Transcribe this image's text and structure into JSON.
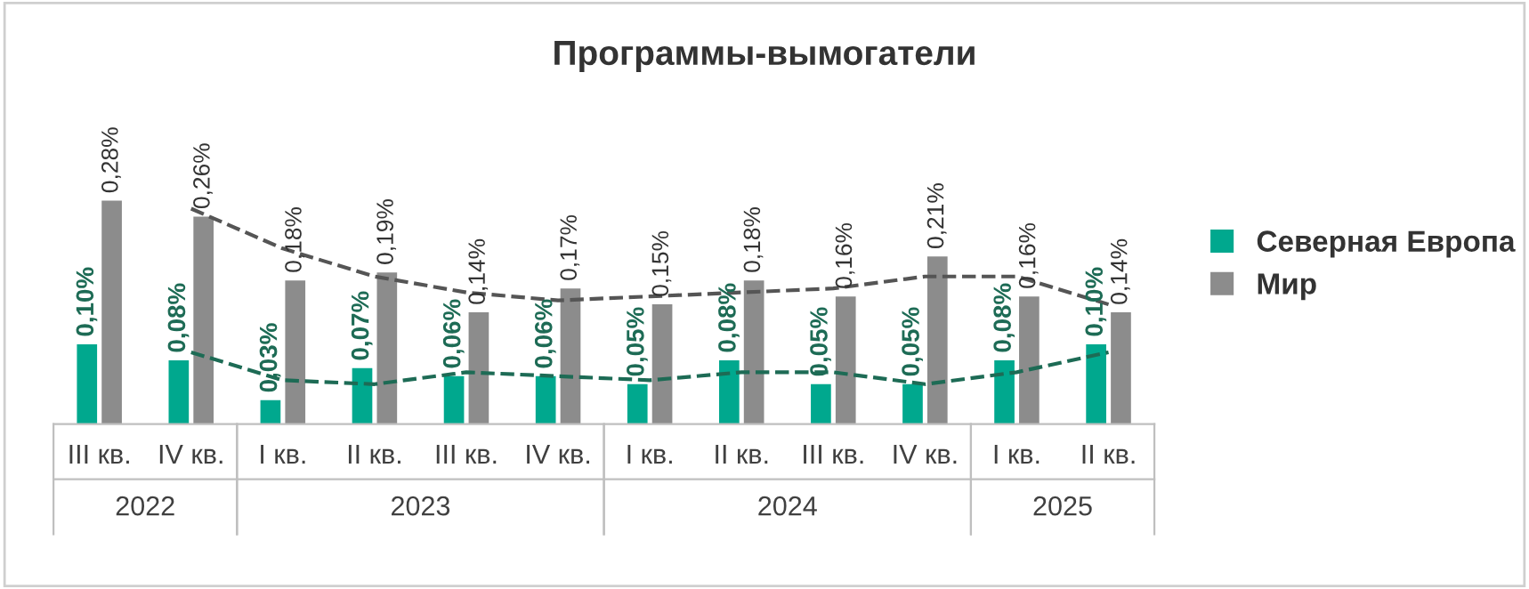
{
  "chart_data": {
    "type": "bar",
    "title": "Программы-вымогатели",
    "categories": [
      "III кв.",
      "IV кв.",
      "I кв.",
      "II кв.",
      "III кв.",
      "IV кв.",
      "I кв.",
      "II кв.",
      "III кв.",
      "IV кв.",
      "I кв.",
      "II кв."
    ],
    "series": [
      {
        "name": "Северная Европа",
        "color": "#00a88e",
        "values": [
          0.1,
          0.08,
          0.03,
          0.07,
          0.06,
          0.06,
          0.05,
          0.08,
          0.05,
          0.05,
          0.08,
          0.1
        ],
        "value_labels": [
          "0,10%",
          "0,08%",
          "0,03%",
          "0,07%",
          "0,06%",
          "0,06%",
          "0,05%",
          "0,08%",
          "0,05%",
          "0,05%",
          "0,08%",
          "0,10%"
        ]
      },
      {
        "name": "Мир",
        "color": "#8c8c8c",
        "values": [
          0.28,
          0.26,
          0.18,
          0.19,
          0.14,
          0.17,
          0.15,
          0.18,
          0.16,
          0.21,
          0.16,
          0.14
        ],
        "value_labels": [
          "0,28%",
          "0,26%",
          "0,18%",
          "0,19%",
          "0,14%",
          "0,17%",
          "0,15%",
          "0,18%",
          "0,16%",
          "0,21%",
          "0,16%",
          "0,14%"
        ]
      },
      {
        "type": "line",
        "line_style": "dashed",
        "color": "#1d6b55",
        "values": [
          null,
          0.09,
          0.055,
          0.05,
          0.065,
          0.06,
          0.055,
          0.065,
          0.065,
          0.05,
          0.065,
          0.09
        ]
      },
      {
        "type": "line",
        "line_style": "dashed",
        "color": "#555555",
        "values": [
          null,
          0.27,
          0.22,
          0.185,
          0.165,
          0.155,
          0.16,
          0.165,
          0.17,
          0.185,
          0.185,
          0.15
        ]
      }
    ],
    "annotations": [
      "2022",
      "2023",
      "2024",
      "2025"
    ],
    "relative": false,
    "legend": "right",
    "grid": false
  }
}
